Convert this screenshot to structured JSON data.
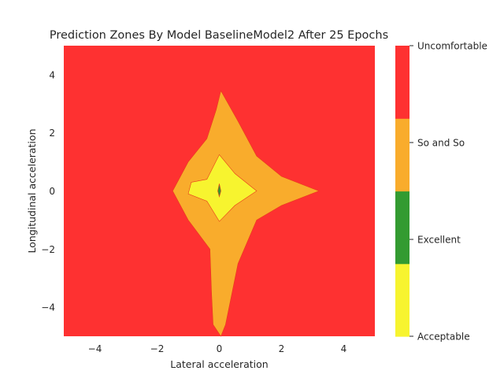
{
  "chart_data": {
    "type": "contour",
    "title": "Prediction Zones By Model BaselineModel2 After 25 Epochs",
    "xlabel": "Lateral acceleration",
    "ylabel": "Longitudinal acceleration",
    "xlim": [
      -5,
      5
    ],
    "ylim": [
      -5,
      5
    ],
    "x_ticks": [
      -4,
      -2,
      0,
      2,
      4
    ],
    "y_ticks": [
      -4,
      -2,
      0,
      2,
      4
    ],
    "x_tick_labels": [
      "−4",
      "−2",
      "0",
      "2",
      "4"
    ],
    "y_tick_labels": [
      "−4",
      "−2",
      "0",
      "2",
      "4"
    ],
    "grid": false,
    "zones": [
      {
        "label": "Uncomfortable",
        "color": "#fe3131",
        "region": "background (outside orange region)",
        "polygon": []
      },
      {
        "label": "So and So",
        "color": "#f9ac2c",
        "polygon": [
          [
            0.05,
            3.45
          ],
          [
            0.6,
            2.4
          ],
          [
            1.2,
            1.2
          ],
          [
            2.0,
            0.5
          ],
          [
            3.2,
            0.0
          ],
          [
            2.0,
            -0.5
          ],
          [
            1.2,
            -1.0
          ],
          [
            0.6,
            -2.5
          ],
          [
            0.2,
            -4.6
          ],
          [
            0.05,
            -5.0
          ],
          [
            -0.2,
            -4.6
          ],
          [
            -0.25,
            -3.5
          ],
          [
            -0.3,
            -2.0
          ],
          [
            -1.0,
            -1.0
          ],
          [
            -1.5,
            0.0
          ],
          [
            -1.0,
            1.0
          ],
          [
            -0.4,
            1.8
          ],
          [
            -0.1,
            2.8
          ]
        ]
      },
      {
        "label": "Acceptable",
        "color": "#f7f42f",
        "polygon": [
          [
            0.0,
            1.25
          ],
          [
            0.5,
            0.6
          ],
          [
            1.2,
            0.0
          ],
          [
            0.5,
            -0.5
          ],
          [
            0.0,
            -1.05
          ],
          [
            -0.4,
            -0.35
          ],
          [
            -1.0,
            -0.1
          ],
          [
            -0.9,
            0.3
          ],
          [
            -0.4,
            0.4
          ]
        ]
      },
      {
        "label": "Excellent",
        "color": "#339b31",
        "polygon": [
          [
            0.0,
            0.25
          ],
          [
            0.05,
            0.0
          ],
          [
            0.0,
            -0.2
          ],
          [
            -0.05,
            0.0
          ]
        ]
      }
    ],
    "colorbar": {
      "labels": [
        "Acceptable",
        "Excellent",
        "So and So",
        "Uncomfortable"
      ],
      "colors": [
        "#f7f42f",
        "#339b31",
        "#f9ac2c",
        "#fe3131"
      ]
    }
  }
}
